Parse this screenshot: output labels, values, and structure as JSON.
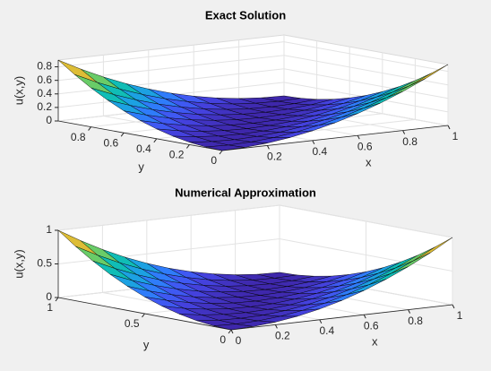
{
  "chart_data": [
    {
      "type": "surface",
      "title": "Exact Solution",
      "xlabel": "x",
      "ylabel": "y",
      "zlabel": "u(x,y)",
      "x": [
        0,
        0.1,
        0.2,
        0.3,
        0.4,
        0.5,
        0.6,
        0.7,
        0.8,
        0.9,
        1
      ],
      "y": [
        0,
        0.1,
        0.2,
        0.3,
        0.4,
        0.5,
        0.6,
        0.7,
        0.8,
        0.9,
        1
      ],
      "z": [
        [
          0,
          0.009,
          0.036,
          0.081,
          0.144,
          0.225,
          0.324,
          0.441,
          0.576,
          0.729,
          0.9
        ],
        [
          0.009,
          0,
          0.009,
          0.036,
          0.081,
          0.144,
          0.225,
          0.324,
          0.441,
          0.576,
          0.729
        ],
        [
          0.036,
          0.009,
          0,
          0.009,
          0.036,
          0.081,
          0.144,
          0.225,
          0.324,
          0.441,
          0.576
        ],
        [
          0.081,
          0.036,
          0.009,
          0,
          0.009,
          0.036,
          0.081,
          0.144,
          0.225,
          0.324,
          0.441
        ],
        [
          0.144,
          0.081,
          0.036,
          0.009,
          0,
          0.009,
          0.036,
          0.081,
          0.144,
          0.225,
          0.324
        ],
        [
          0.225,
          0.144,
          0.081,
          0.036,
          0.009,
          0,
          0.009,
          0.036,
          0.081,
          0.144,
          0.225
        ],
        [
          0.324,
          0.225,
          0.144,
          0.081,
          0.036,
          0.009,
          0,
          0.009,
          0.036,
          0.081,
          0.144
        ],
        [
          0.441,
          0.324,
          0.225,
          0.144,
          0.081,
          0.036,
          0.009,
          0,
          0.009,
          0.036,
          0.081
        ],
        [
          0.576,
          0.441,
          0.324,
          0.225,
          0.144,
          0.081,
          0.036,
          0.009,
          0,
          0.009,
          0.036
        ],
        [
          0.729,
          0.576,
          0.441,
          0.324,
          0.225,
          0.144,
          0.081,
          0.036,
          0.009,
          0,
          0.009
        ],
        [
          0.9,
          0.729,
          0.576,
          0.441,
          0.324,
          0.225,
          0.144,
          0.081,
          0.036,
          0.009,
          0
        ]
      ],
      "xlim": [
        0,
        1
      ],
      "ylim": [
        0,
        1
      ],
      "zlim": [
        0,
        0.9
      ],
      "xticks": [
        0.2,
        0.4,
        0.6,
        0.8,
        1
      ],
      "yticks": [
        0,
        0.2,
        0.4,
        0.6,
        0.8
      ],
      "zticks": [
        0,
        0.2,
        0.4,
        0.6,
        0.8
      ],
      "grid": true,
      "colormap": "parula",
      "edge_color": "#000000"
    },
    {
      "type": "surface",
      "title": "Numerical Approximation",
      "xlabel": "x",
      "ylabel": "y",
      "zlabel": "u(x,y)",
      "x": [
        0,
        0.1,
        0.2,
        0.3,
        0.4,
        0.5,
        0.6,
        0.7,
        0.8,
        0.9,
        1
      ],
      "y": [
        0,
        0.1,
        0.2,
        0.3,
        0.4,
        0.5,
        0.6,
        0.7,
        0.8,
        0.9,
        1
      ],
      "z": [
        [
          0,
          0.01,
          0.04,
          0.09,
          0.16,
          0.25,
          0.36,
          0.49,
          0.64,
          0.81,
          1
        ],
        [
          0.01,
          0,
          0.01,
          0.04,
          0.09,
          0.16,
          0.25,
          0.36,
          0.49,
          0.64,
          0.81
        ],
        [
          0.04,
          0.01,
          0,
          0.01,
          0.04,
          0.09,
          0.16,
          0.25,
          0.36,
          0.49,
          0.64
        ],
        [
          0.09,
          0.04,
          0.01,
          0,
          0.01,
          0.04,
          0.09,
          0.16,
          0.25,
          0.36,
          0.49
        ],
        [
          0.16,
          0.09,
          0.04,
          0.01,
          0,
          0.01,
          0.04,
          0.09,
          0.16,
          0.25,
          0.36
        ],
        [
          0.25,
          0.16,
          0.09,
          0.04,
          0.01,
          0,
          0.01,
          0.04,
          0.09,
          0.16,
          0.25
        ],
        [
          0.36,
          0.25,
          0.16,
          0.09,
          0.04,
          0.01,
          0,
          0.01,
          0.04,
          0.09,
          0.16
        ],
        [
          0.49,
          0.36,
          0.25,
          0.16,
          0.09,
          0.04,
          0.01,
          0,
          0.01,
          0.04,
          0.09
        ],
        [
          0.64,
          0.49,
          0.36,
          0.25,
          0.16,
          0.09,
          0.04,
          0.01,
          0,
          0.01,
          0.04
        ],
        [
          0.81,
          0.64,
          0.49,
          0.36,
          0.25,
          0.16,
          0.09,
          0.04,
          0.01,
          0,
          0.01
        ],
        [
          1,
          0.81,
          0.64,
          0.49,
          0.36,
          0.25,
          0.16,
          0.09,
          0.04,
          0.01,
          0
        ]
      ],
      "xlim": [
        0,
        1
      ],
      "ylim": [
        0,
        1
      ],
      "zlim": [
        0,
        1
      ],
      "xticks": [
        0,
        0.2,
        0.4,
        0.6,
        0.8,
        1
      ],
      "yticks": [
        0,
        0.5,
        1
      ],
      "zticks": [
        0,
        0.5,
        1
      ],
      "grid": true,
      "colormap": "parula",
      "edge_color": "#000000"
    }
  ]
}
